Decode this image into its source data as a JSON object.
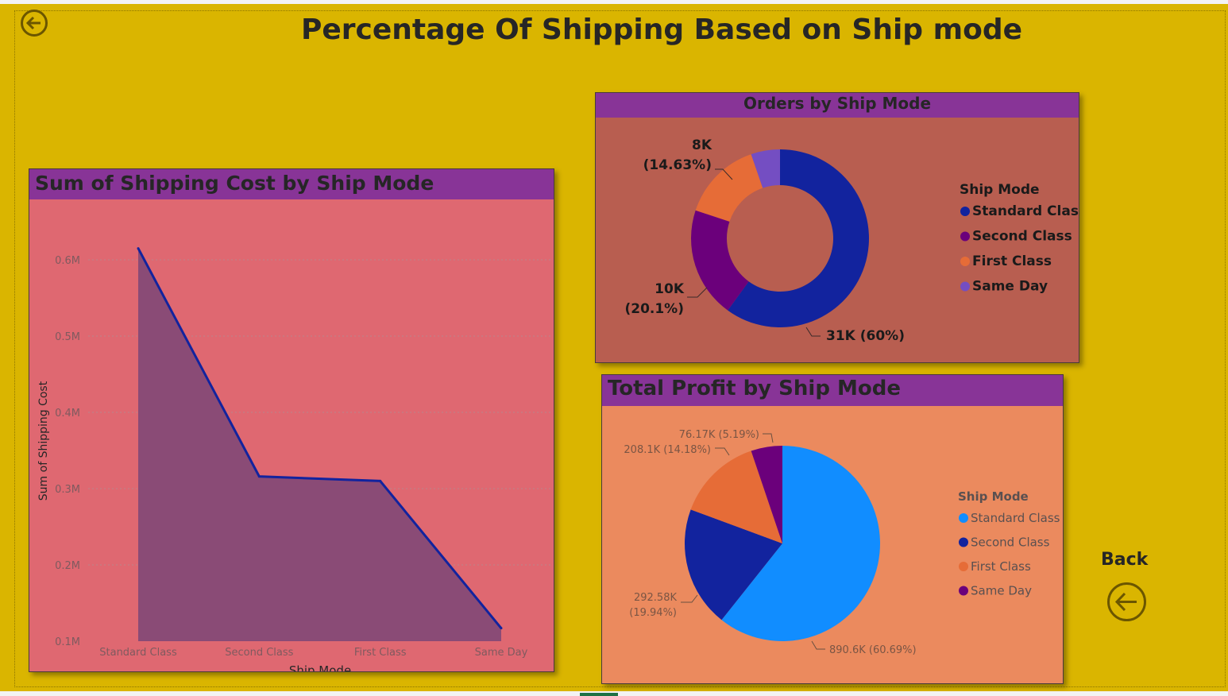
{
  "page": {
    "title": "Percentage Of Shipping Based on Ship mode",
    "back_label": "Back"
  },
  "colors": {
    "canvas": "#dab500",
    "panel_header": "#883497",
    "area_panel": "#df6871",
    "donut_panel": "#b85e50",
    "pie_panel": "#eb8a5e"
  },
  "chart_data": [
    {
      "id": "area",
      "type": "area",
      "title": "Sum of Shipping Cost by Ship Mode",
      "xlabel": "Ship Mode",
      "ylabel": "Sum of Shipping Cost",
      "categories": [
        "Standard Class",
        "Second Class",
        "First Class",
        "Same Day"
      ],
      "values": [
        615000,
        316000,
        310000,
        117000
      ],
      "ylim": [
        100000,
        650000
      ],
      "yticks": [
        100000,
        200000,
        300000,
        400000,
        500000,
        600000
      ],
      "ytick_labels": [
        "0.1M",
        "0.2M",
        "0.3M",
        "0.4M",
        "0.5M",
        "0.6M"
      ],
      "grid": true,
      "line_color": "#12239e",
      "fill_color": "#8a4b76"
    },
    {
      "id": "donut",
      "type": "pie",
      "title": "Orders by Ship Mode",
      "legend_title": "Ship Mode",
      "legend_position": "right",
      "slices": [
        {
          "name": "Standard Class",
          "value": 60,
          "color": "#12239e",
          "label": "31K (60%)"
        },
        {
          "name": "Second Class",
          "value": 20.1,
          "color": "#6b007b",
          "label": "10K (20.1%)"
        },
        {
          "name": "First Class",
          "value": 14.63,
          "color": "#e66c37",
          "label": "8K (14.63%)"
        },
        {
          "name": "Same Day",
          "value": 5.27,
          "color": "#744ec2",
          "label": ""
        }
      ]
    },
    {
      "id": "pie",
      "type": "pie",
      "title": "Total Profit by Ship Mode",
      "legend_title": "Ship Mode",
      "legend_position": "right",
      "slices": [
        {
          "name": "Standard Class",
          "value": 60.69,
          "color": "#118dff",
          "label": "890.6K (60.69%)"
        },
        {
          "name": "Second Class",
          "value": 19.94,
          "color": "#12239e",
          "label": "292.58K (19.94%)"
        },
        {
          "name": "First Class",
          "value": 14.18,
          "color": "#e66c37",
          "label": "208.1K (14.18%)"
        },
        {
          "name": "Same Day",
          "value": 5.19,
          "color": "#6b007b",
          "label": "76.17K (5.19%)"
        }
      ]
    }
  ]
}
